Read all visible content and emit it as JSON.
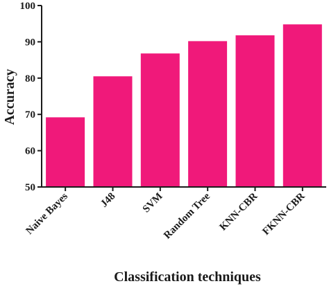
{
  "chart_data": {
    "type": "bar",
    "categories": [
      "Naive Bayes",
      "J48",
      "SVM",
      "Random Tree",
      "KNN-CBR",
      "FKNN-CBR"
    ],
    "values": [
      69.2,
      80.5,
      86.8,
      90.2,
      91.8,
      94.8
    ],
    "xlabel": "Classification techniques",
    "ylabel": "Accuracy",
    "ylim": [
      50,
      100
    ],
    "yticks": [
      "50",
      "60",
      "70",
      "80",
      "90",
      "100"
    ],
    "grid": false,
    "legend": "none",
    "bar_color": "#F0197A",
    "axis_color": "#1a1a1a"
  }
}
